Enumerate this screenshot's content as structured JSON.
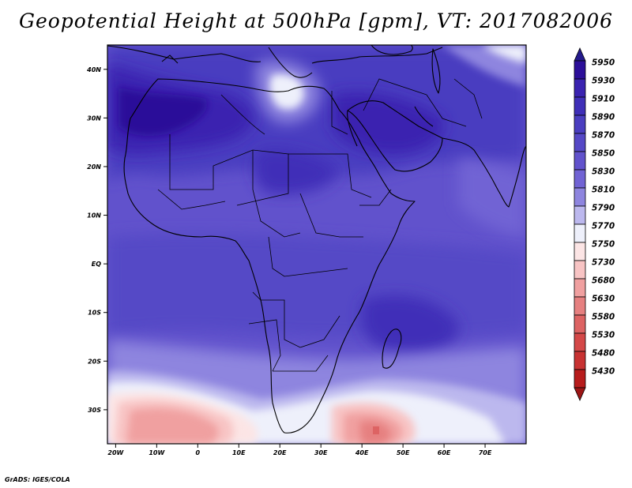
{
  "title": "Geopotential Height at 500hPa [gpm], VT: 2017082006",
  "credit": "GrADS: IGES/COLA",
  "map": {
    "region": "Africa and Middle East",
    "lat_labels": [
      "40N",
      "30N",
      "20N",
      "10N",
      "EQ",
      "10S",
      "20S",
      "30S"
    ],
    "lon_labels": [
      "20W",
      "10W",
      "0",
      "10E",
      "20E",
      "30E",
      "40E",
      "50E",
      "60E",
      "70E"
    ],
    "lat_values": [
      40,
      30,
      20,
      10,
      0,
      -10,
      -20,
      -30
    ],
    "lon_values": [
      -20,
      -10,
      0,
      10,
      20,
      30,
      40,
      50,
      60,
      70
    ],
    "extent": {
      "lon_min": -22,
      "lon_max": 80,
      "lat_min": -37,
      "lat_max": 45
    }
  },
  "legend": {
    "labels": [
      "5950",
      "5930",
      "5910",
      "5890",
      "5870",
      "5850",
      "5830",
      "5810",
      "5790",
      "5770",
      "5750",
      "5730",
      "5680",
      "5630",
      "5580",
      "5530",
      "5480",
      "5430"
    ],
    "colors": [
      "#2c0f99",
      "#3a23b0",
      "#3f2fb8",
      "#4a3ec0",
      "#5548c6",
      "#6152cc",
      "#7163d4",
      "#8e85df",
      "#bcb8ee",
      "#eef0fb",
      "#fce5e5",
      "#f8c4c4",
      "#f0a0a0",
      "#e68080",
      "#dd6363",
      "#d44848",
      "#c83232",
      "#b71c1c"
    ],
    "top_arrow_color": "#241a8c",
    "bottom_arrow_color": "#9c1515"
  }
}
